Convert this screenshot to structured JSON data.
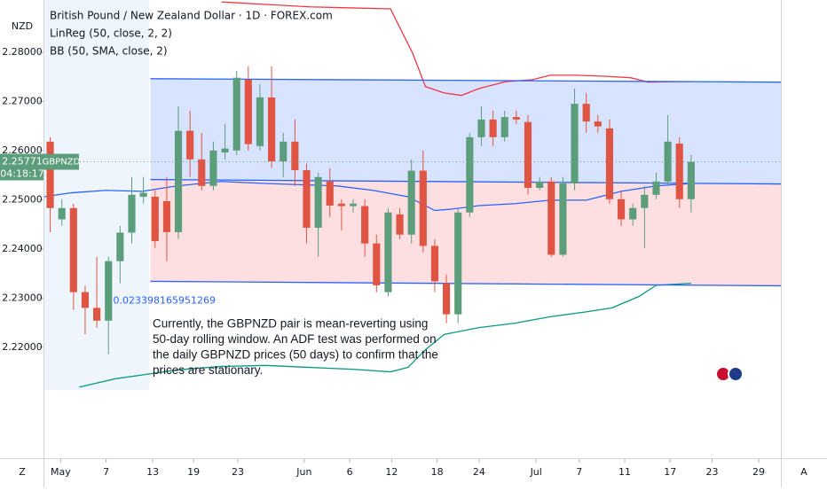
{
  "chart_data": {
    "type": "candlestick",
    "title": "British Pound / New Zealand Dollar · 1D · FOREX.com",
    "indicators": [
      "LinReg (50, close, 2, 2)",
      "BB (50, SMA, close, 2)"
    ],
    "currency": "NZD",
    "symbol": "GBPNZD",
    "last_price": 2.25771,
    "countdown": "04:18:17",
    "deviation": 0.023398165951269,
    "annotation": [
      "Currently, the GBPNZD pair is mean-reverting using",
      "50-day rolling window. An ADF test was performed on",
      "the daily GBPNZD prices (50 days) to confirm that the",
      "prices are stationary."
    ],
    "corner_left": "Z",
    "corner_right": "A",
    "up_color": "#5c9e7b",
    "down_color": "#df5442",
    "open": [
      2.2618,
      2.246,
      2.2483,
      2.2312,
      2.228,
      2.2254,
      2.2375,
      2.2433,
      2.2506,
      2.2506,
      2.2497,
      2.2434,
      2.264,
      2.2582,
      2.2528,
      2.2596,
      2.26,
      2.2744,
      2.2609,
      2.2708,
      2.2578,
      2.2618,
      2.256,
      2.2443,
      2.2537,
      2.2492,
      2.2487,
      2.2487,
      2.2411,
      2.2312,
      2.247,
      2.2429,
      2.2559,
      2.2406,
      2.233,
      2.2267,
      2.2474,
      2.2627,
      2.2663,
      2.2627,
      2.2668,
      2.2658,
      2.2524,
      2.2537,
      2.2388,
      2.2533,
      2.2695,
      2.2659,
      2.2645,
      2.2501,
      2.246,
      2.2483,
      2.251,
      2.2537,
      2.2614,
      2.2501
    ],
    "high": [
      2.2627,
      2.2501,
      2.2492,
      2.2325,
      2.2384,
      2.2384,
      2.2447,
      2.2546,
      2.2546,
      2.2519,
      2.2546,
      2.269,
      2.2681,
      2.2636,
      2.2618,
      2.2654,
      2.2762,
      2.2771,
      2.2735,
      2.2771,
      2.2636,
      2.2663,
      2.2573,
      2.2555,
      2.2564,
      2.2501,
      2.2501,
      2.2501,
      2.2429,
      2.2483,
      2.2483,
      2.2582,
      2.26,
      2.242,
      2.2348,
      2.2483,
      2.2636,
      2.269,
      2.2681,
      2.2681,
      2.2681,
      2.2672,
      2.2546,
      2.2546,
      2.2546,
      2.2726,
      2.2717,
      2.2672,
      2.2663,
      2.2519,
      2.2492,
      2.2528,
      2.2555,
      2.2672,
      2.2627,
      2.2591
    ],
    "low": [
      2.2434,
      2.2447,
      2.2276,
      2.2226,
      2.224,
      2.2186,
      2.233,
      2.2411,
      2.2492,
      2.2402,
      2.2375,
      2.242,
      2.2546,
      2.2519,
      2.2519,
      2.2582,
      2.2591,
      2.26,
      2.26,
      2.2564,
      2.2546,
      2.2528,
      2.2411,
      2.2384,
      2.2465,
      2.2438,
      2.2474,
      2.2384,
      2.2312,
      2.2303,
      2.242,
      2.2411,
      2.2393,
      2.2312,
      2.2249,
      2.2249,
      2.2465,
      2.2609,
      2.2609,
      2.2618,
      2.2654,
      2.251,
      2.2519,
      2.2384,
      2.2384,
      2.2519,
      2.2636,
      2.2636,
      2.2492,
      2.2447,
      2.2447,
      2.2402,
      2.2501,
      2.2528,
      2.2483,
      2.2474
    ],
    "close": [
      2.2483,
      2.2483,
      2.2312,
      2.228,
      2.2254,
      2.2375,
      2.2433,
      2.251,
      2.2514,
      2.2416,
      2.2434,
      2.264,
      2.2582,
      2.2528,
      2.26,
      2.2604,
      2.2748,
      2.2613,
      2.2708,
      2.2578,
      2.2618,
      2.256,
      2.2443,
      2.2546,
      2.2488,
      2.2487,
      2.2492,
      2.2411,
      2.2326,
      2.2474,
      2.2429,
      2.2559,
      2.2406,
      2.2334,
      2.2267,
      2.2474,
      2.2627,
      2.2663,
      2.2627,
      2.2668,
      2.2663,
      2.2524,
      2.2537,
      2.2388,
      2.2533,
      2.2695,
      2.2659,
      2.2649,
      2.2501,
      2.246,
      2.2483,
      2.251,
      2.2537,
      2.2618,
      2.2501,
      2.2577
    ],
    "lines": [
      {
        "color": "#f23645",
        "x": [
          14.7,
          18.5,
          22.3,
          29.2,
          31.1,
          32.2,
          33.8,
          35.3,
          36.8,
          39.1,
          41.4,
          42.9,
          45.2,
          47.5,
          49.8,
          51.3,
          53.6,
          55
        ],
        "values": [
          2.2902,
          2.2897,
          2.2892,
          2.2888,
          2.2798,
          2.273,
          2.2717,
          2.2712,
          2.2726,
          2.274,
          2.2744,
          2.2753,
          2.2753,
          2.2751,
          2.2748,
          2.2739,
          2.274,
          2.274
        ]
      },
      {
        "color": "#2962ff",
        "x": [
          -0.5,
          1.8,
          4.8,
          7.9,
          10.9,
          14.7,
          18.5,
          20.8,
          24.6,
          27.7,
          30.7,
          33.0,
          34.5,
          36.8,
          39.9,
          42.9,
          46.0,
          49.0,
          52.0,
          55.0
        ],
        "values": [
          2.2506,
          2.2514,
          2.2519,
          2.2517,
          2.2528,
          2.2537,
          2.2533,
          2.2531,
          2.2528,
          2.2519,
          2.2506,
          2.2478,
          2.2481,
          2.2488,
          2.2492,
          2.2499,
          2.2499,
          2.2517,
          2.2528,
          2.2533
        ]
      },
      {
        "color": "#089981",
        "x": [
          2.5,
          5.6,
          8.6,
          10.9,
          14.7,
          18.5,
          22.3,
          26.1,
          29.2,
          30.7,
          32.2,
          33.8,
          36.8,
          39.9,
          42.9,
          46.0,
          48.2,
          50.5,
          52.0,
          55.0
        ],
        "values": [
          2.2119,
          2.2136,
          2.2146,
          2.2154,
          2.2161,
          2.2163,
          2.2159,
          2.2155,
          2.215,
          2.2159,
          2.2195,
          2.2226,
          2.224,
          2.2249,
          2.2262,
          2.2272,
          2.228,
          2.2303,
          2.2326,
          2.233
        ]
      },
      {
        "color": "#2962ff",
        "fill": "rgba(41,98,255,0.18)",
        "x": [
          8.6,
          62.7
        ],
        "values": [
          2.2746,
          2.2739
        ]
      },
      {
        "color": "#2962ff",
        "fill": "rgba(242,54,69,0.16)",
        "x": [
          8.6,
          62.7
        ],
        "values": [
          2.2541,
          2.2532
        ]
      },
      {
        "color": "#2962ff",
        "x": [
          8.6,
          62.7
        ],
        "values": [
          2.2334,
          2.2325
        ]
      }
    ],
    "xlim": [
      -0.5,
      62.7
    ],
    "ylim": [
      2.1978,
      2.2906
    ],
    "yticks": [
      {
        "value": 2.28,
        "label": "2.28000"
      },
      {
        "value": 2.27,
        "label": "2.27000"
      },
      {
        "value": 2.26,
        "label": "2.26000"
      },
      {
        "value": 2.25,
        "label": "2.25000"
      },
      {
        "value": 2.24,
        "label": "2.24000"
      },
      {
        "value": 2.23,
        "label": "2.23000"
      },
      {
        "value": 2.22,
        "label": "2.22000"
      }
    ],
    "xticks": [
      {
        "value": 0.9,
        "label": "May"
      },
      {
        "value": 4.8,
        "label": "7"
      },
      {
        "value": 8.8,
        "label": "13"
      },
      {
        "value": 12.3,
        "label": "19"
      },
      {
        "value": 16.1,
        "label": "23"
      },
      {
        "value": 21.8,
        "label": "Jun"
      },
      {
        "value": 25.7,
        "label": "6"
      },
      {
        "value": 29.3,
        "label": "12"
      },
      {
        "value": 33.2,
        "label": "18"
      },
      {
        "value": 36.8,
        "label": "24"
      },
      {
        "value": 41.7,
        "label": "Jul"
      },
      {
        "value": 45.4,
        "label": "7"
      },
      {
        "value": 49.3,
        "label": "11"
      },
      {
        "value": 53.2,
        "label": "17"
      },
      {
        "value": 56.8,
        "label": "23"
      },
      {
        "value": 60.8,
        "label": "29"
      }
    ]
  }
}
